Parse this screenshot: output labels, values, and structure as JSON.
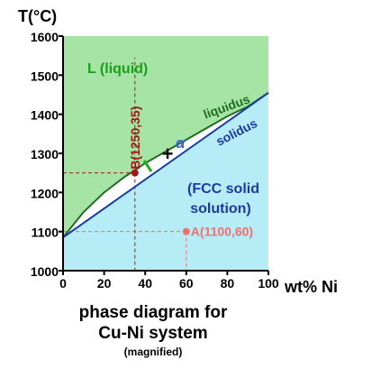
{
  "chart_data": {
    "type": "phase-diagram",
    "ylabel": "T(°C)",
    "xlabel": "wt% Ni",
    "xlim": [
      0,
      100
    ],
    "ylim": [
      1000,
      1600
    ],
    "xticks": [
      "0",
      "20",
      "40",
      "60",
      "80",
      "100"
    ],
    "yticks": [
      "1000",
      "1100",
      "1200",
      "1300",
      "1400",
      "1500",
      "1600"
    ],
    "liquidus": {
      "name": "liquidus",
      "x": [
        0,
        10,
        20,
        30,
        35,
        40,
        50,
        60,
        70,
        80,
        90,
        100
      ],
      "y": [
        1085,
        1150,
        1200,
        1240,
        1257,
        1275,
        1305,
        1335,
        1365,
        1395,
        1420,
        1455
      ]
    },
    "solidus": {
      "name": "solidus",
      "x": [
        0,
        100
      ],
      "y": [
        1085,
        1455
      ]
    },
    "regions": {
      "liquid": "L (liquid)",
      "alpha": "α",
      "fcc_line1": "(FCC solid",
      "fcc_line2": "solution)"
    },
    "points": {
      "A": {
        "label": "A(1100,60)",
        "x": 60,
        "y": 1100
      },
      "B": {
        "label": "B(1250,35)",
        "x": 35,
        "y": 1250
      }
    },
    "colors": {
      "liquid_fill": "#a6e4a6",
      "solid_fill": "#b6ecf5",
      "liquidus": "#1f6e1f",
      "solidus": "#1b3aa6",
      "liquid_label": "#18a018",
      "alpha_label": "#3060d8",
      "fcc_label": "#1b3aa6",
      "point_A": "#f07070",
      "point_B": "#a01818",
      "marker_bar": "#20b020"
    }
  },
  "caption": {
    "line1": "phase diagram for",
    "line2": "Cu-Ni system",
    "line3": "(magnified)"
  }
}
